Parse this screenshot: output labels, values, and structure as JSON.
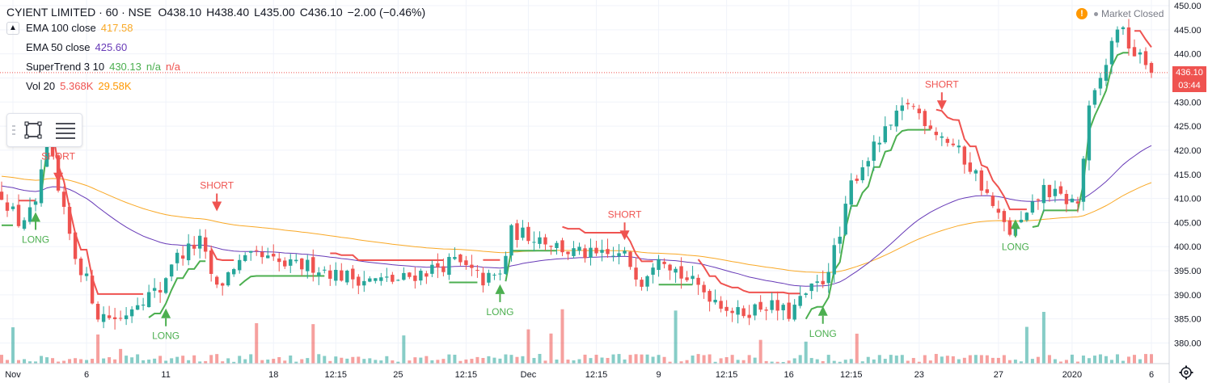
{
  "header": {
    "symbol": "CYIENT LIMITED · 60 · NSE",
    "open": "O438.10",
    "high": "H438.40",
    "low": "L435.00",
    "close": "C436.10",
    "change": "−2.00 (−0.46%)"
  },
  "indicators": [
    {
      "label": "EMA 100 close",
      "values": [
        "417.58"
      ],
      "colors": [
        "#f9a825"
      ]
    },
    {
      "label": "EMA 50 close",
      "values": [
        "425.60"
      ],
      "colors": [
        "#673ab7"
      ]
    },
    {
      "label": "SuperTrend 3 10",
      "values": [
        "430.13",
        "n/a",
        "n/a"
      ],
      "colors": [
        "#4caf50",
        "#4caf50",
        "#ef5350"
      ]
    },
    {
      "label": "Vol 20",
      "values": [
        "5.368K",
        "29.58K"
      ],
      "colors": [
        "#ef5350",
        "#ff9800"
      ]
    }
  ],
  "market_status": {
    "icon": "!",
    "label": "Market Closed"
  },
  "price_tag": {
    "price": "436.10",
    "countdown": "03:44"
  },
  "colors": {
    "up": "#26a69a",
    "down": "#ef5350",
    "st_up": "#4caf50",
    "st_down": "#ef5350",
    "ema100": "#f9a825",
    "ema50": "#673ab7",
    "axis_text": "#131722",
    "grid": "#f0f3fa"
  },
  "icons": [
    "chevron-up-icon",
    "rectangle-tool-icon",
    "list-tool-icon",
    "grip-icon",
    "settings-gear-icon",
    "warning-icon"
  ],
  "chart_data": {
    "type": "candlestick",
    "ylim": [
      377,
      451
    ],
    "y_ticks": [
      "450.00",
      "445.00",
      "440.00",
      "435.00",
      "430.00",
      "425.00",
      "420.00",
      "415.00",
      "410.00",
      "405.00",
      "400.00",
      "395.00",
      "390.00",
      "385.00",
      "380.00"
    ],
    "x_ticks": [
      {
        "label": "Nov",
        "bar": 2
      },
      {
        "label": "6",
        "bar": 15
      },
      {
        "label": "11",
        "bar": 29
      },
      {
        "label": "18",
        "bar": 48
      },
      {
        "label": "12:15",
        "bar": 59
      },
      {
        "label": "25",
        "bar": 70
      },
      {
        "label": "12:15",
        "bar": 82
      },
      {
        "label": "Dec",
        "bar": 93
      },
      {
        "label": "12:15",
        "bar": 105
      },
      {
        "label": "9",
        "bar": 116
      },
      {
        "label": "12:15",
        "bar": 128
      },
      {
        "label": "16",
        "bar": 139
      },
      {
        "label": "12:15",
        "bar": 150
      },
      {
        "label": "23",
        "bar": 162
      },
      {
        "label": "27",
        "bar": 176
      },
      {
        "label": "2020",
        "bar": 189
      },
      {
        "label": "6",
        "bar": 203
      }
    ],
    "bar_count": 204,
    "anchors": [
      [
        0,
        411
      ],
      [
        3,
        405
      ],
      [
        6,
        408
      ],
      [
        8,
        424
      ],
      [
        10,
        411
      ],
      [
        13,
        398
      ],
      [
        15,
        393
      ],
      [
        17,
        386
      ],
      [
        21,
        385
      ],
      [
        24,
        389
      ],
      [
        28,
        391
      ],
      [
        30,
        397
      ],
      [
        35,
        401
      ],
      [
        38,
        391
      ],
      [
        41,
        396
      ],
      [
        45,
        398
      ],
      [
        50,
        396
      ],
      [
        55,
        396
      ],
      [
        60,
        394
      ],
      [
        65,
        393
      ],
      [
        70,
        393
      ],
      [
        75,
        395
      ],
      [
        80,
        397
      ],
      [
        85,
        393
      ],
      [
        88,
        394
      ],
      [
        90,
        403
      ],
      [
        95,
        402
      ],
      [
        100,
        399
      ],
      [
        105,
        398
      ],
      [
        110,
        398
      ],
      [
        113,
        393
      ],
      [
        116,
        399
      ],
      [
        120,
        394
      ],
      [
        125,
        390
      ],
      [
        130,
        386
      ],
      [
        135,
        388
      ],
      [
        139,
        386
      ],
      [
        142,
        390
      ],
      [
        145,
        393
      ],
      [
        148,
        402
      ],
      [
        150,
        413
      ],
      [
        152,
        417
      ],
      [
        155,
        422
      ],
      [
        157,
        425
      ],
      [
        160,
        430
      ],
      [
        165,
        424
      ],
      [
        168,
        421
      ],
      [
        172,
        415
      ],
      [
        176,
        406
      ],
      [
        178,
        403
      ],
      [
        181,
        406
      ],
      [
        184,
        412
      ],
      [
        187,
        410
      ],
      [
        190,
        409
      ],
      [
        192,
        428
      ],
      [
        195,
        438
      ],
      [
        197,
        446
      ],
      [
        200,
        440
      ],
      [
        203,
        437
      ]
    ],
    "signals": [
      {
        "text": "LONG",
        "type": "long",
        "bar": 6,
        "price": 406.5
      },
      {
        "text": "SHORT",
        "type": "short",
        "bar": 10,
        "price": 414
      },
      {
        "text": "SHORT",
        "type": "short",
        "bar": 38,
        "price": 408
      },
      {
        "text": "LONG",
        "type": "long",
        "bar": 29,
        "price": 386.5
      },
      {
        "text": "LONG",
        "type": "long",
        "bar": 88,
        "price": 391.5
      },
      {
        "text": "SHORT",
        "type": "short",
        "bar": 110,
        "price": 402
      },
      {
        "text": "LONG",
        "type": "long",
        "bar": 145,
        "price": 387
      },
      {
        "text": "SHORT",
        "type": "short",
        "bar": 166,
        "price": 429
      },
      {
        "text": "LONG",
        "type": "long",
        "bar": 179,
        "price": 405
      }
    ],
    "last_price": 436.1
  }
}
